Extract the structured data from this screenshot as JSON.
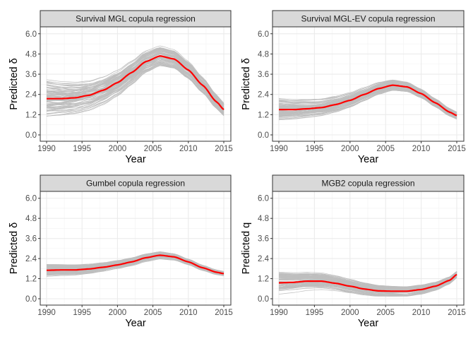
{
  "chart_data": [
    {
      "type": "line",
      "title": "Survival MGL copula regression",
      "xlabel": "Year",
      "ylabel": "Predicted  δ",
      "xlim": [
        1990,
        2015
      ],
      "ylim": [
        0,
        6.2
      ],
      "x_ticks": [
        1990,
        1995,
        2000,
        2005,
        2010,
        2015
      ],
      "x_tick_labels": [
        "1990",
        "1995",
        "2000",
        "2005",
        "2010",
        "2015"
      ],
      "y_ticks": [
        0,
        1.2,
        2.4,
        3.6,
        4.8,
        6.0
      ],
      "y_tick_labels": [
        "0.0",
        "1.2",
        "2.4",
        "3.6",
        "4.8",
        "6.0"
      ],
      "grid": true,
      "series": [
        {
          "role": "mean",
          "color": "#ff0000",
          "x": [
            1990,
            1992,
            1994,
            1996,
            1998,
            2000,
            2002,
            2004,
            2006,
            2008,
            2010,
            2012,
            2014,
            2015
          ],
          "y": [
            2.15,
            2.15,
            2.2,
            2.35,
            2.65,
            3.1,
            3.7,
            4.35,
            4.68,
            4.5,
            3.85,
            2.95,
            1.95,
            1.5
          ]
        }
      ],
      "band": {
        "color": "#bebebe",
        "count": 90,
        "spread": 0.55,
        "early_spread": 0.85
      }
    },
    {
      "type": "line",
      "title": "Survival MGL-EV copula regression",
      "xlabel": "Year",
      "ylabel": "Predicted  δ",
      "xlim": [
        1990,
        2015
      ],
      "ylim": [
        0,
        6.2
      ],
      "x_ticks": [
        1990,
        1995,
        2000,
        2005,
        2010,
        2015
      ],
      "x_tick_labels": [
        "1990",
        "1995",
        "2000",
        "2005",
        "2010",
        "2015"
      ],
      "y_ticks": [
        0,
        1.2,
        2.4,
        3.6,
        4.8,
        6.0
      ],
      "y_tick_labels": [
        "0.0",
        "1.2",
        "2.4",
        "3.6",
        "4.8",
        "6.0"
      ],
      "grid": true,
      "series": [
        {
          "role": "mean",
          "color": "#ff0000",
          "x": [
            1990,
            1992,
            1994,
            1996,
            1998,
            2000,
            2002,
            2004,
            2006,
            2008,
            2010,
            2012,
            2014,
            2015
          ],
          "y": [
            1.5,
            1.5,
            1.55,
            1.62,
            1.8,
            2.05,
            2.4,
            2.75,
            2.95,
            2.85,
            2.45,
            1.9,
            1.35,
            1.15
          ]
        }
      ],
      "band": {
        "color": "#bebebe",
        "count": 90,
        "spread": 0.32,
        "early_spread": 0.5
      }
    },
    {
      "type": "line",
      "title": "Gumbel copula regression",
      "xlabel": "Year",
      "ylabel": "Predicted  δ",
      "xlim": [
        1990,
        2015
      ],
      "ylim": [
        0,
        6.2
      ],
      "x_ticks": [
        1990,
        1995,
        2000,
        2005,
        2010,
        2015
      ],
      "x_tick_labels": [
        "1990",
        "1995",
        "2000",
        "2005",
        "2010",
        "2015"
      ],
      "y_ticks": [
        0,
        1.2,
        2.4,
        3.6,
        4.8,
        6.0
      ],
      "y_tick_labels": [
        "0.0",
        "1.2",
        "2.4",
        "3.6",
        "4.8",
        "6.0"
      ],
      "grid": true,
      "series": [
        {
          "role": "mean",
          "color": "#ff0000",
          "x": [
            1990,
            1992,
            1994,
            1996,
            1998,
            2000,
            2002,
            2004,
            2006,
            2008,
            2010,
            2012,
            2014,
            2015
          ],
          "y": [
            1.7,
            1.72,
            1.72,
            1.78,
            1.88,
            2.02,
            2.2,
            2.45,
            2.6,
            2.5,
            2.2,
            1.85,
            1.58,
            1.5
          ]
        }
      ],
      "band": {
        "color": "#bebebe",
        "count": 90,
        "spread": 0.2,
        "early_spread": 0.3
      }
    },
    {
      "type": "line",
      "title": "MGB2 copula regression",
      "xlabel": "Year",
      "ylabel": "Predicted  q",
      "xlim": [
        1990,
        2015
      ],
      "ylim": [
        0,
        6.2
      ],
      "x_ticks": [
        1990,
        1995,
        2000,
        2005,
        2010,
        2015
      ],
      "x_tick_labels": [
        "1990",
        "1995",
        "2000",
        "2005",
        "2010",
        "2015"
      ],
      "y_ticks": [
        0,
        1.2,
        2.4,
        3.6,
        4.8,
        6.0
      ],
      "y_tick_labels": [
        "0.0",
        "1.2",
        "2.4",
        "3.6",
        "4.8",
        "6.0"
      ],
      "grid": true,
      "series": [
        {
          "role": "mean",
          "color": "#ff0000",
          "x": [
            1990,
            1992,
            1994,
            1996,
            1998,
            2000,
            2002,
            2004,
            2006,
            2008,
            2010,
            2012,
            2014,
            2015
          ],
          "y": [
            0.95,
            0.98,
            1.05,
            1.05,
            0.92,
            0.75,
            0.58,
            0.47,
            0.45,
            0.45,
            0.55,
            0.75,
            1.1,
            1.45
          ]
        }
      ],
      "band": {
        "color": "#bebebe",
        "count": 90,
        "spread": 0.3,
        "early_spread": 0.55
      }
    }
  ]
}
